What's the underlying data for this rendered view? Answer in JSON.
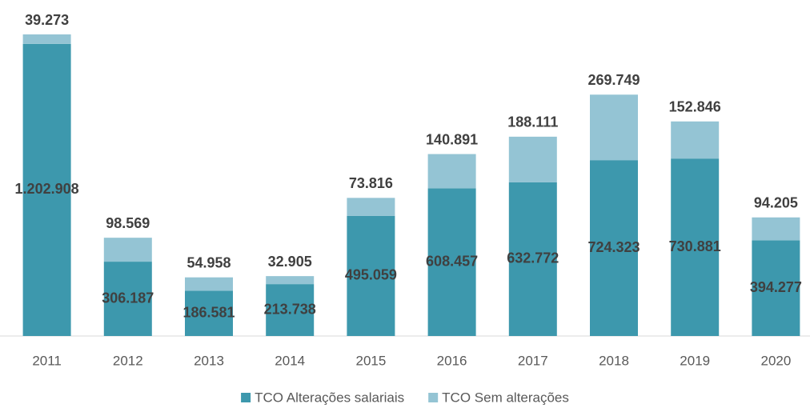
{
  "chart_data": {
    "type": "stacked_bar",
    "categories": [
      "2011",
      "2012",
      "2013",
      "2014",
      "2015",
      "2016",
      "2017",
      "2018",
      "2019",
      "2020"
    ],
    "series": [
      {
        "name": "TCO Alterações salariais",
        "color": "#3d98ad",
        "values": [
          1202908,
          306187,
          186581,
          213738,
          495059,
          608457,
          632772,
          724323,
          730881,
          394277
        ],
        "value_labels": [
          "1.202.908",
          "306.187",
          "186.581",
          "213.738",
          "495.059",
          "608.457",
          "632.772",
          "724.323",
          "730.881",
          "394.277"
        ]
      },
      {
        "name": "TCO Sem alterações",
        "color": "#94c4d4",
        "values": [
          39273,
          98569,
          54958,
          32905,
          73816,
          140891,
          188111,
          269749,
          152846,
          94205
        ],
        "value_labels": [
          "39.273",
          "98.569",
          "54.958",
          "32.905",
          "73.816",
          "140.891",
          "188.111",
          "269.749",
          "152.846",
          "94.205"
        ]
      }
    ],
    "legend": "bottom"
  }
}
